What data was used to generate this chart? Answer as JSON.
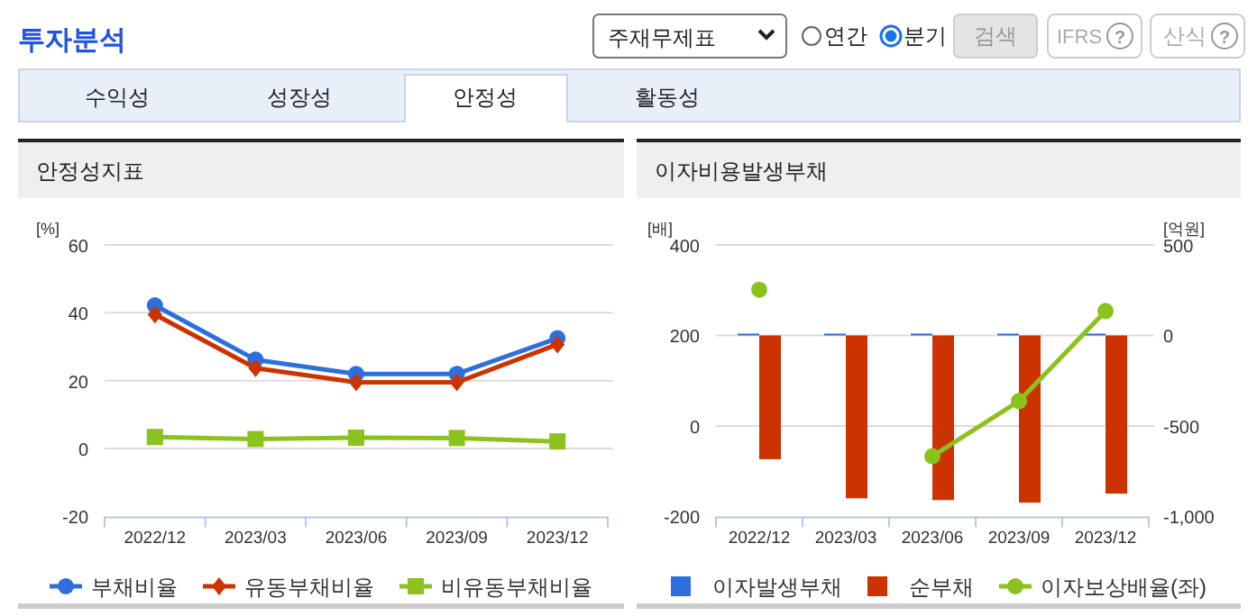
{
  "chart_data": [
    {
      "type": "other",
      "title": "투자분석",
      "annotations": [
        "주재무제표",
        "연간",
        "분기",
        "검색",
        "IFRS",
        "?",
        "산식",
        "?",
        "수익성",
        "성장성",
        "안정성",
        "활동성"
      ]
    },
    {
      "type": "line",
      "title": "안정성지표",
      "ylabel": "[%]",
      "categories": [
        "2022/12",
        "2023/03",
        "2023/06",
        "2023/09",
        "2023/12"
      ],
      "ylim": [
        -20,
        60
      ],
      "yticks": [
        -20,
        0,
        20,
        40,
        60
      ],
      "grid": "y",
      "legend": "bottom",
      "series": [
        {
          "name": "부채비율",
          "color": "#2d6fdc",
          "marker": "circle",
          "values": [
            42.2,
            26.2,
            22,
            22,
            32.5
          ]
        },
        {
          "name": "유동부채비율",
          "color": "#cc3300",
          "marker": "diamond",
          "values": [
            39.5,
            23.7,
            19.5,
            19.5,
            30.7
          ]
        },
        {
          "name": "비유동부채비율",
          "color": "#8cc21e",
          "marker": "square",
          "values": [
            3.4,
            2.8,
            3.2,
            3.1,
            2.1
          ]
        }
      ]
    },
    {
      "type": "bar",
      "title": "이자비용발생부채",
      "ylabel": "[배]",
      "y2label": "[억원]",
      "categories": [
        "2022/12",
        "2023/03",
        "2023/06",
        "2023/09",
        "2023/12"
      ],
      "ylim": [
        -200,
        400
      ],
      "yticks": [
        -200,
        0,
        200,
        400
      ],
      "y2lim": [
        -1000,
        500
      ],
      "y2ticks": [
        {
          "value": -1000,
          "label": "-1,000"
        },
        -500,
        0,
        500
      ],
      "grid": "y",
      "legend": "bottom",
      "series": [
        {
          "name": "이자발생부채",
          "color": "#2d6fdc",
          "axis": "y2",
          "values": [
            10,
            10,
            10,
            10,
            10
          ]
        },
        {
          "name": "순부채",
          "color": "#cc3300",
          "axis": "y2",
          "values": [
            -684,
            -900,
            -910,
            -924,
            -874
          ]
        },
        {
          "name": "이자보상배율(좌)",
          "color": "#8cc21e",
          "type": "line",
          "marker": "circle",
          "values": [
            301,
            null,
            -67,
            55,
            254
          ]
        }
      ]
    }
  ]
}
